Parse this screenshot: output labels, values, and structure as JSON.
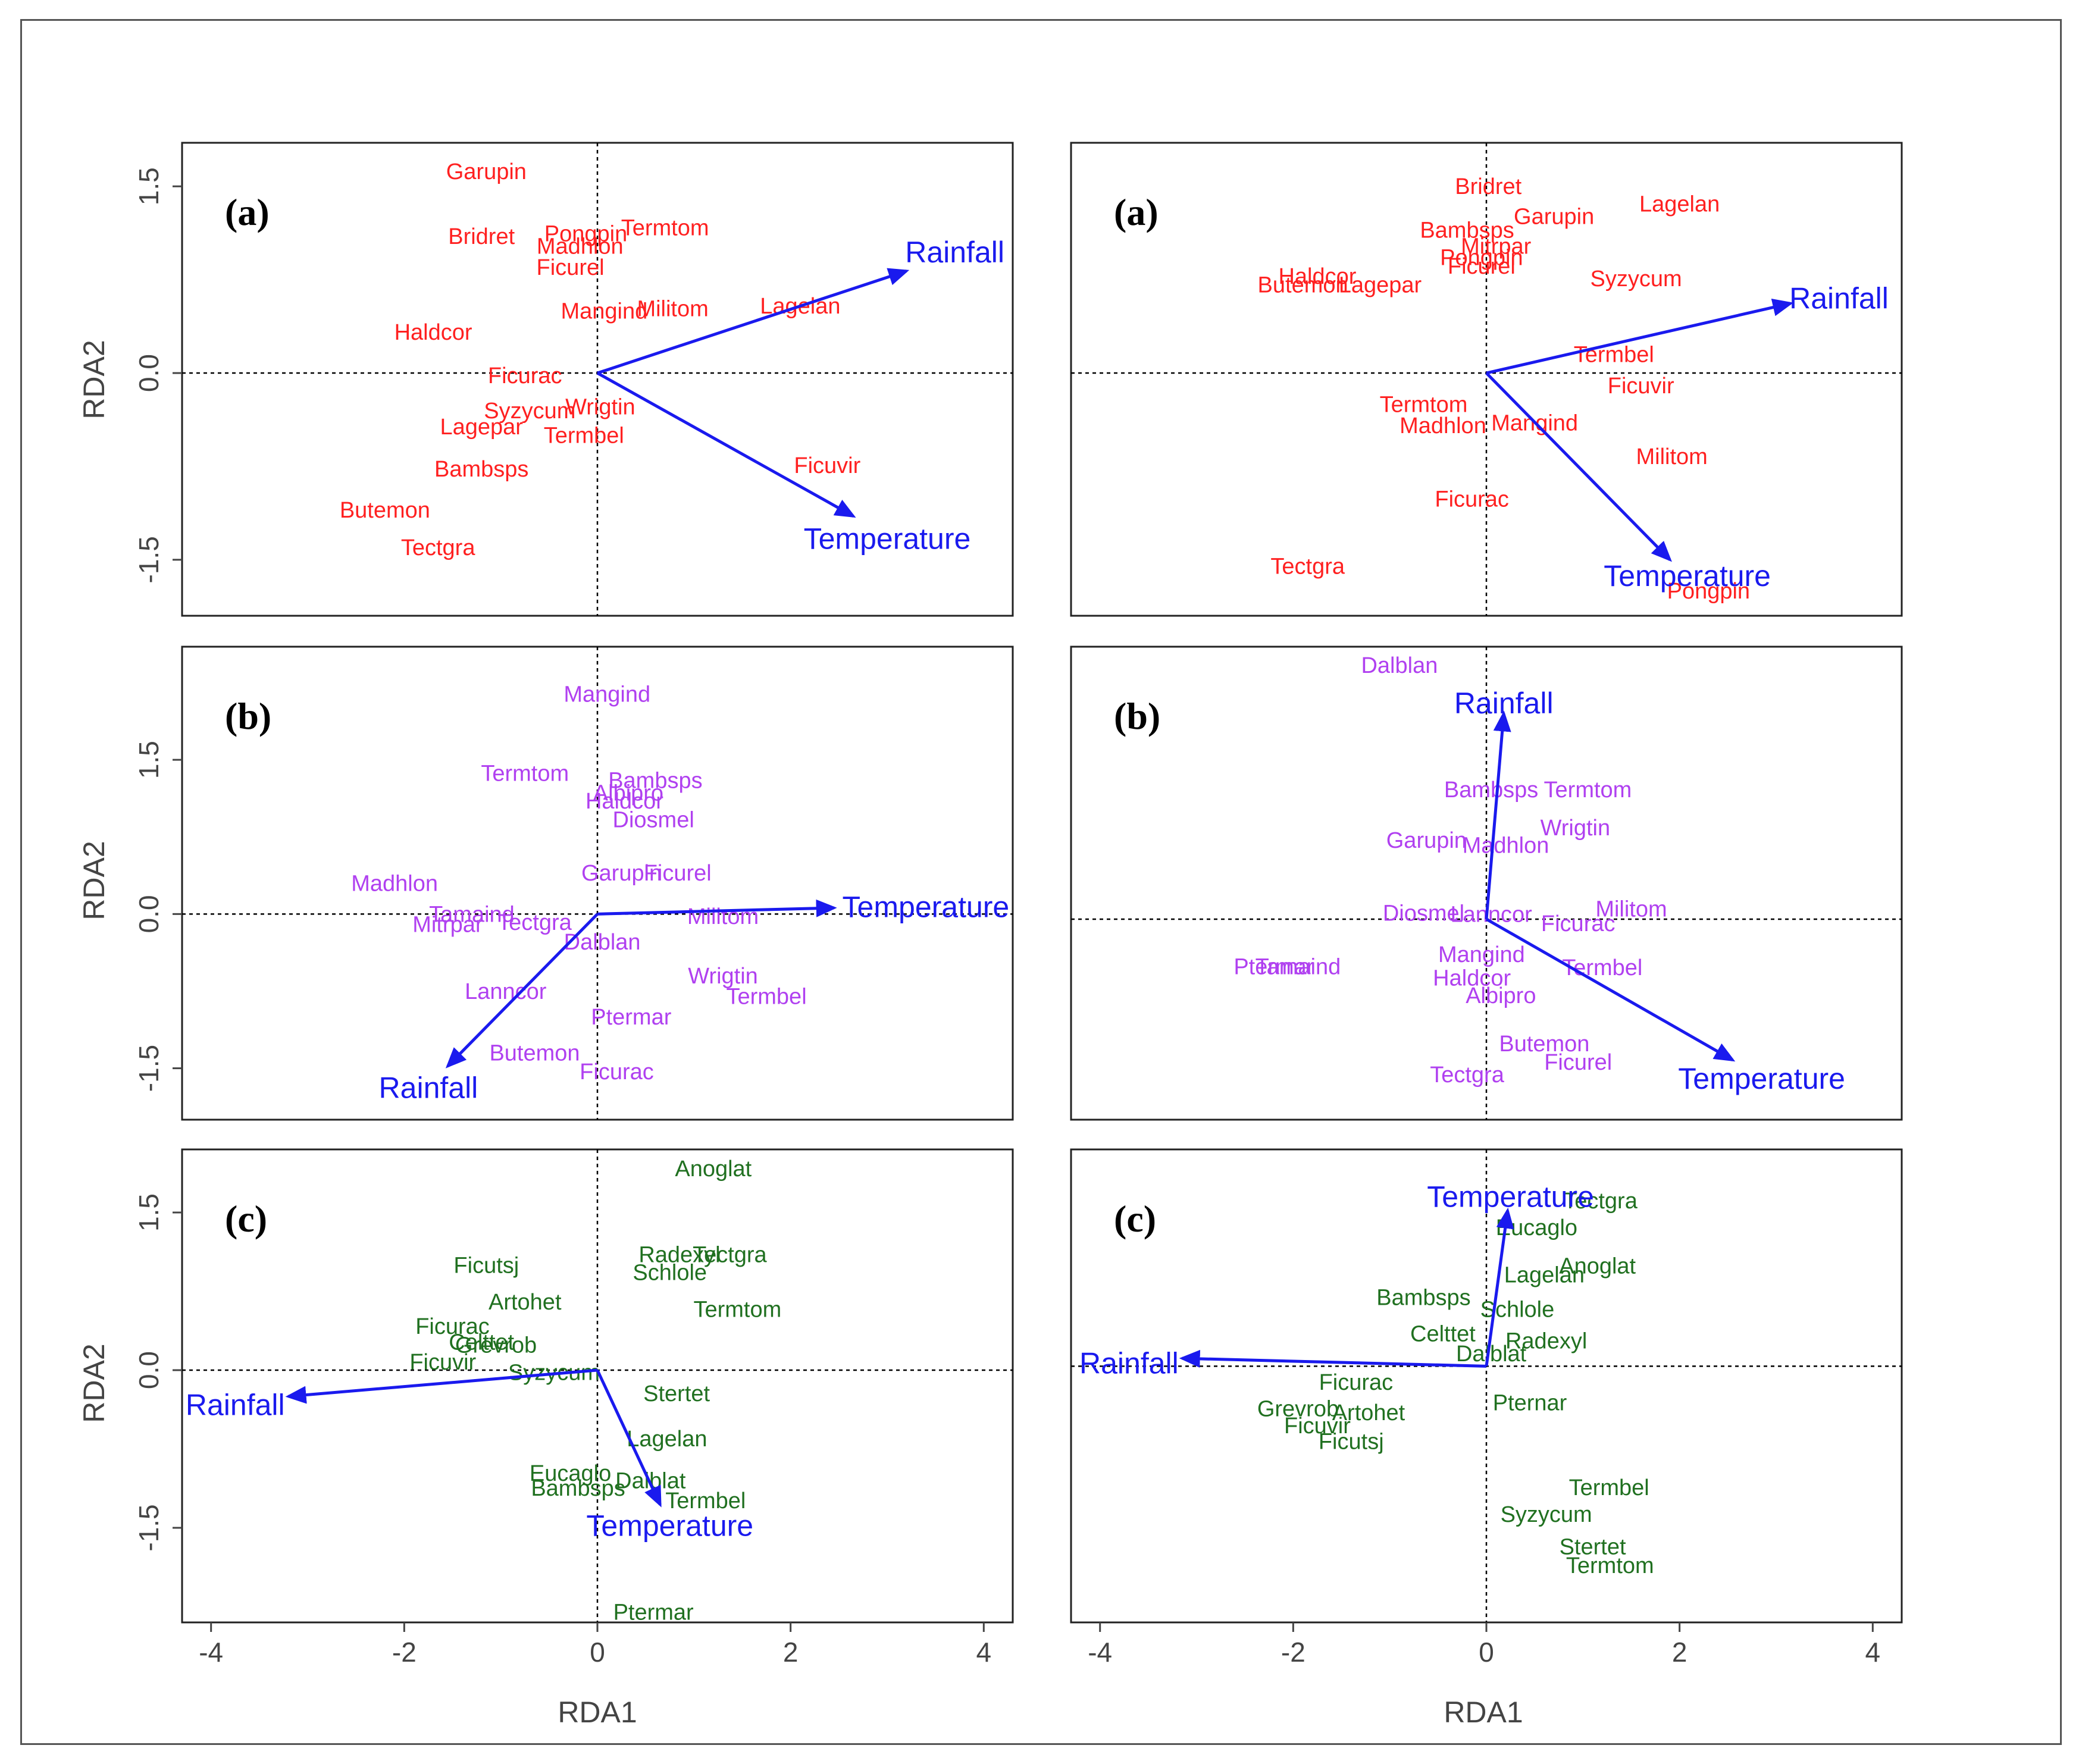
{
  "colors": {
    "env": "#1a1aee",
    "a": "#ff2020",
    "b": "#b040f0",
    "c": "#207020",
    "frame": "#222222",
    "text": "#444444"
  },
  "axis_titles": {
    "x": "RDA1",
    "y": "RDA2"
  },
  "x_ticks": [
    "-4",
    "-2",
    "0",
    "2",
    "4"
  ],
  "y_ticks": [
    "-1.5",
    "0.0",
    "1.5"
  ],
  "chart_data": [
    {
      "id": "p1",
      "type": "scatter",
      "title": "(a)",
      "color": "a",
      "xlim": [
        -4.3,
        4.3
      ],
      "ylim": [
        -1.95,
        1.85
      ],
      "x_ticks_shown": false,
      "y_ticks_shown": true,
      "species": [
        {
          "label": "Garupin",
          "x": -1.15,
          "y": 1.62
        },
        {
          "label": "Bridret",
          "x": -1.2,
          "y": 1.1
        },
        {
          "label": "Pongpin",
          "x": -0.12,
          "y": 1.12
        },
        {
          "label": "Termtom",
          "x": 0.7,
          "y": 1.17
        },
        {
          "label": "Madhlon",
          "x": -0.18,
          "y": 1.02
        },
        {
          "label": "Ficurel",
          "x": -0.28,
          "y": 0.85
        },
        {
          "label": "Haldcor",
          "x": -1.7,
          "y": 0.33
        },
        {
          "label": "Mangind",
          "x": 0.07,
          "y": 0.5
        },
        {
          "label": "Militom",
          "x": 0.78,
          "y": 0.52
        },
        {
          "label": "Lagelan",
          "x": 2.1,
          "y": 0.54
        },
        {
          "label": "Ficurac",
          "x": -0.75,
          "y": -0.02
        },
        {
          "label": "Syzycum",
          "x": -0.7,
          "y": -0.3
        },
        {
          "label": "Wrigtin",
          "x": 0.03,
          "y": -0.27
        },
        {
          "label": "Lagepar",
          "x": -1.2,
          "y": -0.43
        },
        {
          "label": "Termbel",
          "x": -0.14,
          "y": -0.5
        },
        {
          "label": "Bambsps",
          "x": -1.2,
          "y": -0.77
        },
        {
          "label": "Ficuvir",
          "x": 2.38,
          "y": -0.74
        },
        {
          "label": "Butemon",
          "x": -2.2,
          "y": -1.1
        },
        {
          "label": "Tectgra",
          "x": -1.65,
          "y": -1.4
        }
      ],
      "arrows": [
        {
          "label": "Rainfall",
          "x": 3.2,
          "y": 0.82,
          "lx": 3.7,
          "ly": 0.97
        },
        {
          "label": "Temperature",
          "x": 2.65,
          "y": -1.15,
          "lx": 3.0,
          "ly": -1.33
        }
      ]
    },
    {
      "id": "p2",
      "type": "scatter",
      "title": "(a)",
      "color": "a",
      "xlim": [
        -4.3,
        4.3
      ],
      "ylim": [
        -1.95,
        1.85
      ],
      "x_ticks_shown": false,
      "y_ticks_shown": false,
      "species": [
        {
          "label": "Bridret",
          "x": 0.02,
          "y": 1.5
        },
        {
          "label": "Lagelan",
          "x": 2.0,
          "y": 1.36
        },
        {
          "label": "Garupin",
          "x": 0.7,
          "y": 1.26
        },
        {
          "label": "Bambsps",
          "x": -0.2,
          "y": 1.15
        },
        {
          "label": "Mitrpar",
          "x": 0.1,
          "y": 1.02
        },
        {
          "label": "Pongpin",
          "x": -0.05,
          "y": 0.93
        },
        {
          "label": "Ficurel",
          "x": -0.05,
          "y": 0.86
        },
        {
          "label": "Haldcor",
          "x": -1.75,
          "y": 0.78
        },
        {
          "label": "Butemon",
          "x": -1.9,
          "y": 0.71
        },
        {
          "label": "Lagepar",
          "x": -1.1,
          "y": 0.71
        },
        {
          "label": "Syzycum",
          "x": 1.55,
          "y": 0.76
        },
        {
          "label": "Termbel",
          "x": 1.32,
          "y": 0.15
        },
        {
          "label": "Ficuvir",
          "x": 1.6,
          "y": -0.1
        },
        {
          "label": "Termtom",
          "x": -0.65,
          "y": -0.25
        },
        {
          "label": "Madhlon",
          "x": -0.45,
          "y": -0.42
        },
        {
          "label": "Mangind",
          "x": 0.5,
          "y": -0.4
        },
        {
          "label": "Militom",
          "x": 1.92,
          "y": -0.67
        },
        {
          "label": "Ficurac",
          "x": -0.15,
          "y": -1.01
        },
        {
          "label": "Tectgra",
          "x": -1.85,
          "y": -1.55
        },
        {
          "label": "Pongpin",
          "x": 2.3,
          "y": -1.75
        }
      ],
      "arrows": [
        {
          "label": "Rainfall",
          "x": 3.15,
          "y": 0.56,
          "lx": 3.65,
          "ly": 0.6
        },
        {
          "label": "Temperature",
          "x": 1.9,
          "y": -1.5,
          "lx": 2.08,
          "ly": -1.63
        }
      ]
    },
    {
      "id": "p3",
      "type": "scatter",
      "title": "(b)",
      "color": "b",
      "xlim": [
        -4.3,
        4.3
      ],
      "ylim": [
        -2.0,
        2.6
      ],
      "x_ticks_shown": false,
      "y_ticks_shown": true,
      "species": [
        {
          "label": "Mangind",
          "x": 0.1,
          "y": 2.14
        },
        {
          "label": "Termtom",
          "x": -0.75,
          "y": 1.37
        },
        {
          "label": "Bambsps",
          "x": 0.6,
          "y": 1.3
        },
        {
          "label": "Albipro",
          "x": 0.32,
          "y": 1.18
        },
        {
          "label": "Haldcor",
          "x": 0.28,
          "y": 1.1
        },
        {
          "label": "Diosmel",
          "x": 0.58,
          "y": 0.92
        },
        {
          "label": "Garupin",
          "x": 0.25,
          "y": 0.4
        },
        {
          "label": "Ficurel",
          "x": 0.83,
          "y": 0.4
        },
        {
          "label": "Madhlon",
          "x": -2.1,
          "y": 0.3
        },
        {
          "label": "Tamaind",
          "x": -1.3,
          "y": 0.0
        },
        {
          "label": "Mitrpar",
          "x": -1.55,
          "y": -0.1
        },
        {
          "label": "Tectgra",
          "x": -0.65,
          "y": -0.08
        },
        {
          "label": "Militom",
          "x": 1.3,
          "y": -0.02
        },
        {
          "label": "Dalblan",
          "x": 0.05,
          "y": -0.27
        },
        {
          "label": "Wrigtin",
          "x": 1.3,
          "y": -0.6
        },
        {
          "label": "Termbel",
          "x": 1.75,
          "y": -0.8
        },
        {
          "label": "Lanncor",
          "x": -0.95,
          "y": -0.75
        },
        {
          "label": "Ptermar",
          "x": 0.35,
          "y": -1.0
        },
        {
          "label": "Butemon",
          "x": -0.65,
          "y": -1.35
        },
        {
          "label": "Ficurac",
          "x": 0.2,
          "y": -1.53
        }
      ],
      "arrows": [
        {
          "label": "Temperature",
          "x": 2.45,
          "y": 0.06,
          "lx": 3.4,
          "ly": 0.07
        },
        {
          "label": "Rainfall",
          "x": -1.55,
          "y": -1.48,
          "lx": -1.75,
          "ly": -1.69
        }
      ]
    },
    {
      "id": "p4",
      "type": "scatter",
      "title": "(b)",
      "color": "b",
      "xlim": [
        -4.3,
        4.3
      ],
      "ylim": [
        -1.95,
        2.65
      ],
      "x_ticks_shown": false,
      "y_ticks_shown": false,
      "species": [
        {
          "label": "Dalblan",
          "x": -0.9,
          "y": 2.47
        },
        {
          "label": "Bambsps",
          "x": 0.05,
          "y": 1.26
        },
        {
          "label": "Termtom",
          "x": 1.05,
          "y": 1.26
        },
        {
          "label": "Wrigtin",
          "x": 0.92,
          "y": 0.89
        },
        {
          "label": "Garupin",
          "x": -0.62,
          "y": 0.77
        },
        {
          "label": "Madhlon",
          "x": 0.2,
          "y": 0.72
        },
        {
          "label": "Militom",
          "x": 1.5,
          "y": 0.1
        },
        {
          "label": "Diosmel",
          "x": -0.65,
          "y": 0.06
        },
        {
          "label": "Lanncor",
          "x": 0.05,
          "y": 0.05
        },
        {
          "label": "Ficurac",
          "x": 0.95,
          "y": -0.04
        },
        {
          "label": "Ptermar",
          "x": -2.2,
          "y": -0.46
        },
        {
          "label": "Tamaind",
          "x": -1.95,
          "y": -0.46
        },
        {
          "label": "Mangind",
          "x": -0.05,
          "y": -0.34
        },
        {
          "label": "Termbel",
          "x": 1.2,
          "y": -0.47
        },
        {
          "label": "Haldcor",
          "x": -0.15,
          "y": -0.57
        },
        {
          "label": "Albipro",
          "x": 0.15,
          "y": -0.74
        },
        {
          "label": "Butemon",
          "x": 0.6,
          "y": -1.21
        },
        {
          "label": "Ficurel",
          "x": 0.95,
          "y": -1.39
        },
        {
          "label": "Tectgra",
          "x": -0.2,
          "y": -1.51
        }
      ],
      "arrows": [
        {
          "label": "Rainfall",
          "x": 0.18,
          "y": 2.0,
          "lx": 0.18,
          "ly": 2.1
        },
        {
          "label": "Temperature",
          "x": 2.55,
          "y": -1.37,
          "lx": 2.85,
          "ly": -1.55
        }
      ]
    },
    {
      "id": "p5",
      "type": "scatter",
      "title": "(c)",
      "color": "c",
      "xlim": [
        -4.3,
        4.3
      ],
      "ylim": [
        -2.4,
        2.1
      ],
      "x_ticks_shown": true,
      "y_ticks_shown": true,
      "species": [
        {
          "label": "Anoglat",
          "x": 1.2,
          "y": 1.92
        },
        {
          "label": "Ficutsj",
          "x": -1.15,
          "y": 1.0
        },
        {
          "label": "Radexyl",
          "x": 0.85,
          "y": 1.1
        },
        {
          "label": "Tectgra",
          "x": 1.37,
          "y": 1.1
        },
        {
          "label": "Schlole",
          "x": 0.75,
          "y": 0.93
        },
        {
          "label": "Artohet",
          "x": -0.75,
          "y": 0.65
        },
        {
          "label": "Termtom",
          "x": 1.45,
          "y": 0.58
        },
        {
          "label": "Ficurac",
          "x": -1.5,
          "y": 0.42
        },
        {
          "label": "Celttet",
          "x": -1.2,
          "y": 0.27
        },
        {
          "label": "Grevrob",
          "x": -1.05,
          "y": 0.24
        },
        {
          "label": "Ficuvir",
          "x": -1.6,
          "y": 0.08
        },
        {
          "label": "Syzycum",
          "x": -0.45,
          "y": -0.02
        },
        {
          "label": "Stertet",
          "x": 0.82,
          "y": -0.22
        },
        {
          "label": "Lagelan",
          "x": 0.72,
          "y": -0.65
        },
        {
          "label": "Eucaglo",
          "x": -0.28,
          "y": -0.98
        },
        {
          "label": "Dalblat",
          "x": 0.55,
          "y": -1.05
        },
        {
          "label": "Bambsps",
          "x": -0.2,
          "y": -1.12
        },
        {
          "label": "Termbel",
          "x": 1.12,
          "y": -1.24
        },
        {
          "label": "Ptermar",
          "x": 0.58,
          "y": -2.3
        }
      ],
      "arrows": [
        {
          "label": "Rainfall",
          "x": -3.2,
          "y": -0.25,
          "lx": -3.75,
          "ly": -0.33
        },
        {
          "label": "Temperature",
          "x": 0.65,
          "y": -1.28,
          "lx": 0.75,
          "ly": -1.48
        }
      ]
    },
    {
      "id": "p6",
      "type": "scatter",
      "title": "(c)",
      "color": "c",
      "xlim": [
        -4.3,
        4.3
      ],
      "ylim": [
        -2.6,
        2.2
      ],
      "x_ticks_shown": true,
      "y_ticks_shown": false,
      "species": [
        {
          "label": "Tectgra",
          "x": 1.18,
          "y": 1.68
        },
        {
          "label": "Eucaglo",
          "x": 0.52,
          "y": 1.41
        },
        {
          "label": "Anoglat",
          "x": 1.15,
          "y": 1.02
        },
        {
          "label": "Lagelan",
          "x": 0.6,
          "y": 0.93
        },
        {
          "label": "Bambsps",
          "x": -0.65,
          "y": 0.7
        },
        {
          "label": "Schlole",
          "x": 0.32,
          "y": 0.58
        },
        {
          "label": "Celttet",
          "x": -0.45,
          "y": 0.33
        },
        {
          "label": "Radexyl",
          "x": 0.62,
          "y": 0.26
        },
        {
          "label": "Dalblat",
          "x": 0.05,
          "y": 0.13
        },
        {
          "label": "Ficurac",
          "x": -1.35,
          "y": -0.16
        },
        {
          "label": "Grevrob",
          "x": -1.95,
          "y": -0.43
        },
        {
          "label": "Artohet",
          "x": -1.22,
          "y": -0.47
        },
        {
          "label": "Pternar",
          "x": 0.45,
          "y": -0.37
        },
        {
          "label": "Ficuvir",
          "x": -1.75,
          "y": -0.6
        },
        {
          "label": "Ficutsj",
          "x": -1.4,
          "y": -0.76
        },
        {
          "label": "Termbel",
          "x": 1.27,
          "y": -1.23
        },
        {
          "label": "Syzycum",
          "x": 0.62,
          "y": -1.5
        },
        {
          "label": "Stertet",
          "x": 1.1,
          "y": -1.83
        },
        {
          "label": "Termtom",
          "x": 1.28,
          "y": -2.02
        }
      ],
      "arrows": [
        {
          "label": "Temperature",
          "x": 0.22,
          "y": 1.58,
          "lx": 0.25,
          "ly": 1.72
        },
        {
          "label": "Rainfall",
          "x": -3.15,
          "y": 0.08,
          "lx": -3.7,
          "ly": 0.03
        }
      ]
    }
  ]
}
